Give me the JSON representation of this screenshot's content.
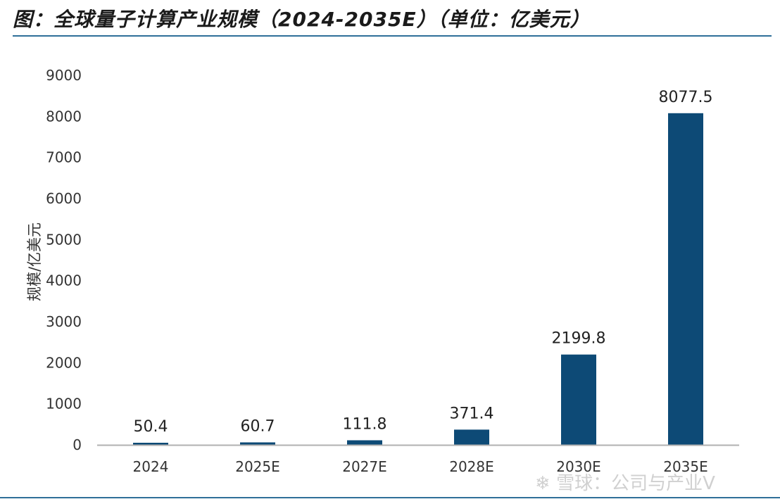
{
  "header": {
    "title": "图：全球量子计算产业规模（2024-2035E）（单位：亿美元）"
  },
  "watermark": {
    "text": "雪球：公司与产业V",
    "logo_icon": "snowball-logo-icon"
  },
  "colors": {
    "bar": "#0d4a76",
    "axis": "#b0b0b0",
    "rule": "#2f6f99"
  },
  "chart_data": {
    "type": "bar",
    "title": "全球量子计算产业规模（2024-2035E）（单位：亿美元）",
    "xlabel": "",
    "ylabel": "规模/亿美元",
    "categories": [
      "2024",
      "2025E",
      "2027E",
      "2028E",
      "2030E",
      "2035E"
    ],
    "values": [
      50.4,
      60.7,
      111.8,
      371.4,
      2199.8,
      8077.5
    ],
    "data_labels": [
      "50.4",
      "60.7",
      "111.8",
      "371.4",
      "2199.8",
      "8077.5"
    ],
    "ylim": [
      0,
      9000
    ],
    "yticks": [
      0,
      1000,
      2000,
      3000,
      4000,
      5000,
      6000,
      7000,
      8000,
      9000
    ],
    "grid": false,
    "legend": "none"
  }
}
